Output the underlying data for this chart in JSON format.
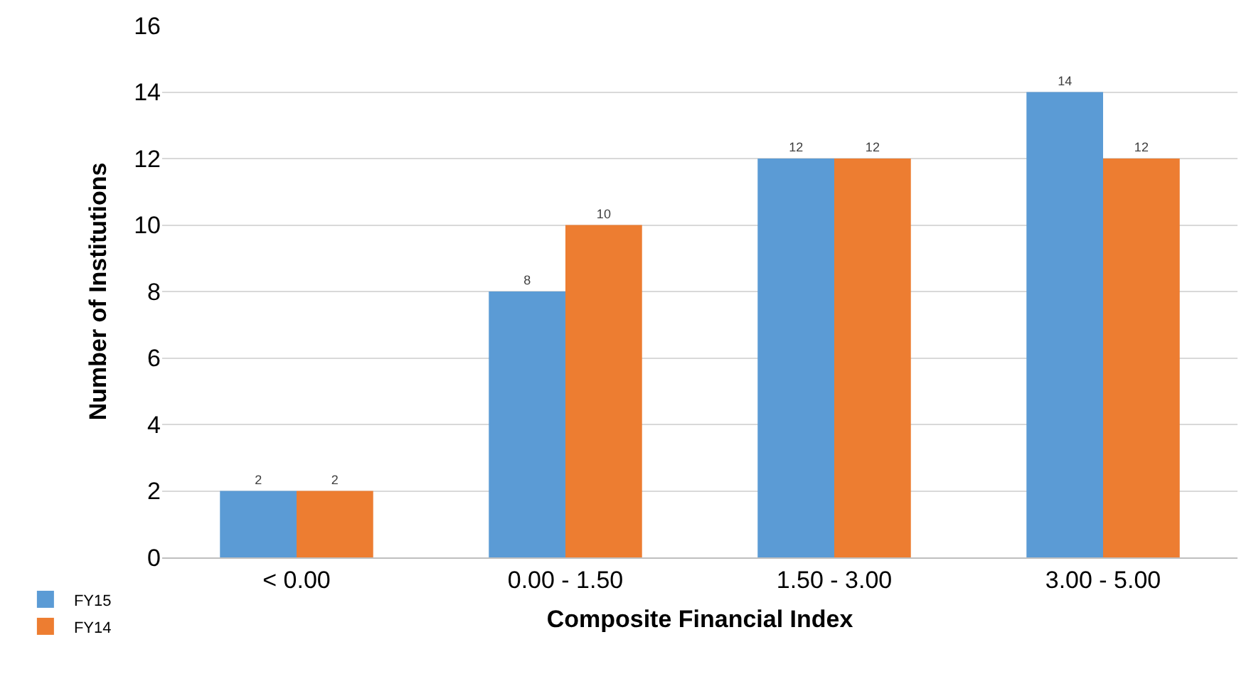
{
  "chart_data": {
    "type": "bar",
    "xlabel": "Composite Financial Index",
    "ylabel": "Number of Institutions",
    "categories": [
      "< 0.00",
      "0.00 - 1.50",
      "1.50 - 3.00",
      "3.00 - 5.00"
    ],
    "series": [
      {
        "name": "FY15",
        "color": "#5b9bd5",
        "values": [
          2,
          8,
          12,
          14
        ]
      },
      {
        "name": "FY14",
        "color": "#ed7d31",
        "values": [
          2,
          10,
          12,
          12
        ]
      }
    ],
    "ylim": [
      0,
      16
    ],
    "yticks": [
      0,
      2,
      4,
      6,
      8,
      10,
      12,
      14,
      16
    ],
    "grid": "y",
    "legend": "bottom left",
    "data_labels": true
  }
}
